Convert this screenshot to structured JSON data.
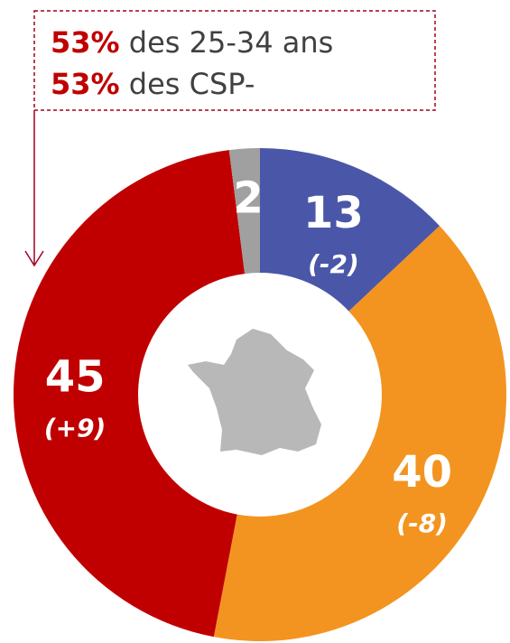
{
  "chart_data": {
    "type": "donut",
    "categories": [
      null,
      null,
      null,
      null
    ],
    "values": [
      13,
      40,
      45,
      2
    ],
    "colors": [
      "#4a57a8",
      "#f39420",
      "#c00000",
      "#a0a0a0"
    ],
    "change_labels": [
      "(-2)",
      "(-8)",
      "(+9)",
      null
    ],
    "annotations": [
      {
        "highlight": "53%",
        "text": "des 25-34 ans"
      },
      {
        "highlight": "53%",
        "text": "des CSP-"
      }
    ]
  }
}
